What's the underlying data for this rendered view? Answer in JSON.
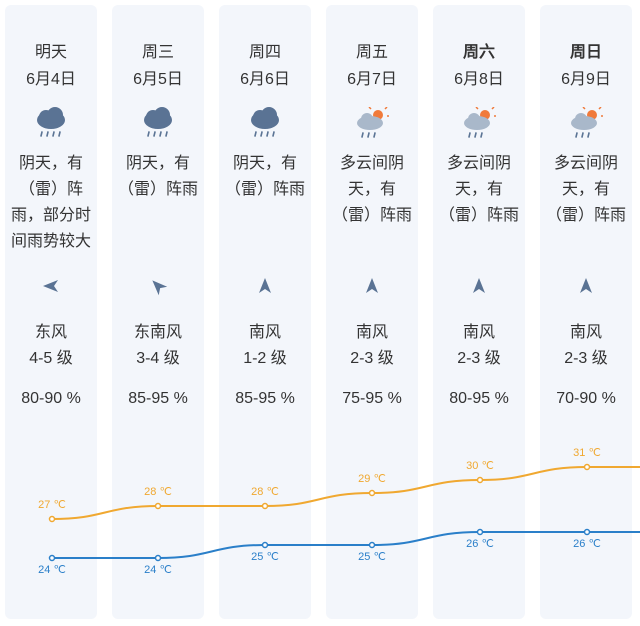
{
  "days": [
    {
      "label": "明天",
      "date": "6月4日",
      "icon": "thunder-rain-icon",
      "desc": "阴天，有（雷）阵雨，部分时间雨势较大",
      "wind_dir": "东风",
      "wind_level": "4-5 级",
      "humidity": "80-90 %",
      "high": "27 ℃",
      "low": "24 ℃",
      "high_c": 27,
      "low_c": 24
    },
    {
      "label": "周三",
      "date": "6月5日",
      "icon": "thunder-rain-icon",
      "desc": "阴天，有（雷）阵雨",
      "wind_dir": "东南风",
      "wind_level": "3-4 级",
      "humidity": "85-95 %",
      "high": "28 ℃",
      "low": "24 ℃",
      "high_c": 28,
      "low_c": 24
    },
    {
      "label": "周四",
      "date": "6月6日",
      "icon": "thunder-rain-icon",
      "desc": "阴天，有（雷）阵雨",
      "wind_dir": "南风",
      "wind_level": "1-2 级",
      "humidity": "85-95 %",
      "high": "28 ℃",
      "low": "25 ℃",
      "high_c": 28,
      "low_c": 25
    },
    {
      "label": "周五",
      "date": "6月7日",
      "icon": "partly-cloudy-thunder-rain-icon",
      "desc": "多云间阴天，有（雷）阵雨",
      "wind_dir": "南风",
      "wind_level": "2-3 级",
      "humidity": "75-95 %",
      "high": "29 ℃",
      "low": "25 ℃",
      "high_c": 29,
      "low_c": 25
    },
    {
      "label": "周六",
      "date": "6月8日",
      "icon": "partly-cloudy-thunder-rain-icon",
      "desc": "多云间阴天，有（雷）阵雨",
      "wind_dir": "南风",
      "wind_level": "2-3 级",
      "humidity": "80-95 %",
      "high": "30 ℃",
      "low": "26 ℃",
      "high_c": 30,
      "low_c": 26
    },
    {
      "label": "周日",
      "date": "6月9日",
      "icon": "partly-cloudy-thunder-rain-icon",
      "desc": "多云间阴天，有（雷）阵雨",
      "wind_dir": "南风",
      "wind_level": "2-3 级",
      "humidity": "70-90 %",
      "high": "31 ℃",
      "low": "26 ℃",
      "high_c": 31,
      "low_c": 26
    }
  ],
  "colors": {
    "high_line": "#f0a830",
    "low_line": "#2a7fc9",
    "column_bg": "#f3f6fb",
    "icon_cloud": "#5a7394",
    "sun": "#f07a3a"
  }
}
